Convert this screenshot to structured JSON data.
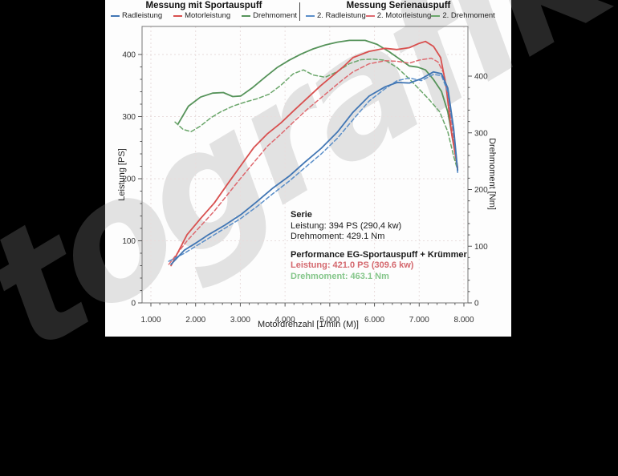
{
  "watermark": "tografik",
  "legend": {
    "sport": {
      "title": "Messung mit Sportauspuff",
      "items": [
        {
          "label": "Radleistung",
          "color": "#4176b4",
          "dash": "solid"
        },
        {
          "label": "Motorleistung",
          "color": "#d8504f",
          "dash": "solid"
        },
        {
          "label": "Drehmoment",
          "color": "#56935a",
          "dash": "solid"
        }
      ]
    },
    "serie": {
      "title": "Messung Serienauspuff",
      "items": [
        {
          "label": "2. Radleistung",
          "color": "#5b8fc9",
          "dash": "dashed"
        },
        {
          "label": "2. Motorleistung",
          "color": "#de6a70",
          "dash": "dashed"
        },
        {
          "label": "2. Drehmoment",
          "color": "#6aa66a",
          "dash": "dashed"
        }
      ]
    }
  },
  "axes": {
    "y_left_label": "Leistung [PS]",
    "y_right_label": "Drehmoment [Nm]",
    "x_label": "Motordrehzahl [1/min (M)]",
    "x_ticks": [
      {
        "value": 1000,
        "label": "1.000"
      },
      {
        "value": 2000,
        "label": "2.000"
      },
      {
        "value": 3000,
        "label": "3.000"
      },
      {
        "value": 4000,
        "label": "4.000"
      },
      {
        "value": 5000,
        "label": "5.000"
      },
      {
        "value": 6000,
        "label": "6.000"
      },
      {
        "value": 7000,
        "label": "7.000"
      },
      {
        "value": 8000,
        "label": "8.000"
      }
    ],
    "y_left_ticks": [
      {
        "value": 0,
        "label": "0"
      },
      {
        "value": 100,
        "label": "100"
      },
      {
        "value": 200,
        "label": "200"
      },
      {
        "value": 300,
        "label": "300"
      },
      {
        "value": 400,
        "label": "400"
      }
    ],
    "y_right_ticks": [
      {
        "value": 0,
        "label": "0"
      },
      {
        "value": 100,
        "label": "100"
      },
      {
        "value": 200,
        "label": "200"
      },
      {
        "value": 300,
        "label": "300"
      },
      {
        "value": 400,
        "label": "400"
      }
    ]
  },
  "annotations": {
    "serie": {
      "title": "Serie",
      "leistung": "Leistung: 394 PS (290,4 kw)",
      "drehmoment": "Drehmoment: 429.1 Nm"
    },
    "performance": {
      "title": "Performance EG-Sportauspuff + Krümmer",
      "leistung": "Leistung: 421.0 PS (309.6 kw)",
      "drehmoment": "Drehmoment: 463.1 Nm",
      "leistung_color": "#d4686e",
      "drehmoment_color": "#85c68a"
    }
  },
  "colors": {
    "grid": "#e8dcdc",
    "frame": "#777",
    "tick": "#555",
    "tick_text": "#333",
    "panel": "#fdfdfd",
    "background": "#000000"
  },
  "chart_data": {
    "type": "line",
    "title": "",
    "xlabel": "Motordrehzahl [1/min (M)]",
    "x_range": [
      1000,
      8000
    ],
    "y_left": {
      "label": "Leistung [PS]",
      "range": [
        0,
        440
      ]
    },
    "y_right": {
      "label": "Drehmoment [Nm]",
      "range": [
        0,
        480
      ]
    },
    "grid": true,
    "legend_position": "top",
    "series": [
      {
        "name": "Drehmoment (Sportauspuff)",
        "axis": "Nm",
        "color": "#56935a",
        "dash": "solid",
        "points": [
          [
            1610,
            316
          ],
          [
            1840,
            347
          ],
          [
            2110,
            363
          ],
          [
            2380,
            370
          ],
          [
            2620,
            371
          ],
          [
            2830,
            364
          ],
          [
            3010,
            365
          ],
          [
            3280,
            380
          ],
          [
            3550,
            398
          ],
          [
            3820,
            415
          ],
          [
            4090,
            428
          ],
          [
            4360,
            439
          ],
          [
            4630,
            448
          ],
          [
            4900,
            455
          ],
          [
            5170,
            460
          ],
          [
            5440,
            463
          ],
          [
            5790,
            463
          ],
          [
            6060,
            456
          ],
          [
            6330,
            443
          ],
          [
            6600,
            428
          ],
          [
            6780,
            418
          ],
          [
            6960,
            416
          ],
          [
            7140,
            411
          ],
          [
            7320,
            394
          ],
          [
            7500,
            373
          ],
          [
            7640,
            337
          ],
          [
            7770,
            280
          ],
          [
            7860,
            235
          ]
        ]
      },
      {
        "name": "2. Drehmoment (Serie)",
        "axis": "Nm",
        "color": "#6aa66a",
        "dash": "dashed",
        "points": [
          [
            1540,
            319
          ],
          [
            1720,
            306
          ],
          [
            1900,
            302
          ],
          [
            2110,
            312
          ],
          [
            2330,
            326
          ],
          [
            2560,
            337
          ],
          [
            2830,
            347
          ],
          [
            3100,
            354
          ],
          [
            3370,
            360
          ],
          [
            3640,
            368
          ],
          [
            3910,
            384
          ],
          [
            4180,
            404
          ],
          [
            4410,
            411
          ],
          [
            4630,
            402
          ],
          [
            4900,
            398
          ],
          [
            5170,
            408
          ],
          [
            5440,
            422
          ],
          [
            5700,
            429
          ],
          [
            5970,
            430
          ],
          [
            6240,
            428
          ],
          [
            6510,
            415
          ],
          [
            6780,
            395
          ],
          [
            7000,
            377
          ],
          [
            7230,
            358
          ],
          [
            7460,
            337
          ],
          [
            7640,
            302
          ],
          [
            7770,
            259
          ],
          [
            7860,
            234
          ]
        ]
      },
      {
        "name": "2. Motorleistung (Serie)",
        "axis": "PS",
        "color": "#de6a70",
        "dash": "dashed",
        "points": [
          [
            1400,
            62
          ],
          [
            1810,
            100
          ],
          [
            2420,
            148
          ],
          [
            3000,
            200
          ],
          [
            3600,
            252
          ],
          [
            3910,
            272
          ],
          [
            4200,
            292
          ],
          [
            4500,
            312
          ],
          [
            4800,
            330
          ],
          [
            5100,
            348
          ],
          [
            5300,
            360
          ],
          [
            5520,
            372
          ],
          [
            5880,
            385
          ],
          [
            6240,
            390
          ],
          [
            6510,
            389
          ],
          [
            6780,
            386
          ],
          [
            7000,
            391
          ],
          [
            7270,
            394
          ],
          [
            7420,
            388
          ],
          [
            7550,
            370
          ],
          [
            7640,
            340
          ],
          [
            7770,
            265
          ],
          [
            7860,
            212
          ]
        ]
      },
      {
        "name": "Motorleistung (Sportauspuff)",
        "axis": "PS",
        "color": "#d8504f",
        "dash": "solid",
        "points": [
          [
            1450,
            60
          ],
          [
            1810,
            110
          ],
          [
            2100,
            135
          ],
          [
            2420,
            161
          ],
          [
            2700,
            190
          ],
          [
            3000,
            220
          ],
          [
            3300,
            250
          ],
          [
            3600,
            272
          ],
          [
            3910,
            290
          ],
          [
            4200,
            310
          ],
          [
            4500,
            330
          ],
          [
            4800,
            350
          ],
          [
            5100,
            368
          ],
          [
            5300,
            380
          ],
          [
            5520,
            395
          ],
          [
            5880,
            405
          ],
          [
            6240,
            410
          ],
          [
            6500,
            408
          ],
          [
            6780,
            411
          ],
          [
            7000,
            418
          ],
          [
            7140,
            421
          ],
          [
            7320,
            413
          ],
          [
            7480,
            395
          ],
          [
            7600,
            350
          ],
          [
            7730,
            270
          ],
          [
            7860,
            218
          ]
        ]
      },
      {
        "name": "2. Radleistung (Serie)",
        "axis": "PS",
        "color": "#5b8fc9",
        "dash": "dashed",
        "points": [
          [
            1400,
            67
          ],
          [
            1750,
            80
          ],
          [
            2020,
            92
          ],
          [
            2290,
            104
          ],
          [
            2650,
            120
          ],
          [
            3010,
            136
          ],
          [
            3370,
            155
          ],
          [
            3730,
            176
          ],
          [
            4090,
            196
          ],
          [
            4450,
            218
          ],
          [
            4810,
            240
          ],
          [
            5170,
            265
          ],
          [
            5520,
            295
          ],
          [
            5880,
            325
          ],
          [
            6240,
            345
          ],
          [
            6510,
            358
          ],
          [
            6780,
            362
          ],
          [
            7050,
            358
          ],
          [
            7320,
            368
          ],
          [
            7500,
            366
          ],
          [
            7640,
            340
          ],
          [
            7770,
            275
          ],
          [
            7860,
            210
          ]
        ]
      },
      {
        "name": "Radleistung (Sportauspuff)",
        "axis": "PS",
        "color": "#4176b4",
        "dash": "solid",
        "points": [
          [
            1450,
            62
          ],
          [
            1750,
            85
          ],
          [
            2020,
            97
          ],
          [
            2290,
            110
          ],
          [
            2650,
            125
          ],
          [
            3010,
            142
          ],
          [
            3370,
            163
          ],
          [
            3730,
            185
          ],
          [
            4090,
            204
          ],
          [
            4450,
            227
          ],
          [
            4810,
            249
          ],
          [
            5170,
            275
          ],
          [
            5520,
            307
          ],
          [
            5880,
            333
          ],
          [
            6240,
            348
          ],
          [
            6510,
            355
          ],
          [
            6780,
            354
          ],
          [
            7050,
            361
          ],
          [
            7320,
            372
          ],
          [
            7500,
            369
          ],
          [
            7640,
            346
          ],
          [
            7770,
            281
          ],
          [
            7860,
            213
          ]
        ]
      }
    ],
    "annotations": [
      "Serie | Leistung: 394 PS (290,4 kw) | Drehmoment: 429.1 Nm",
      "Performance EG-Sportauspuff + Krümmer | Leistung: 421.0 PS (309.6 kw) | Drehmoment: 463.1 Nm"
    ]
  }
}
